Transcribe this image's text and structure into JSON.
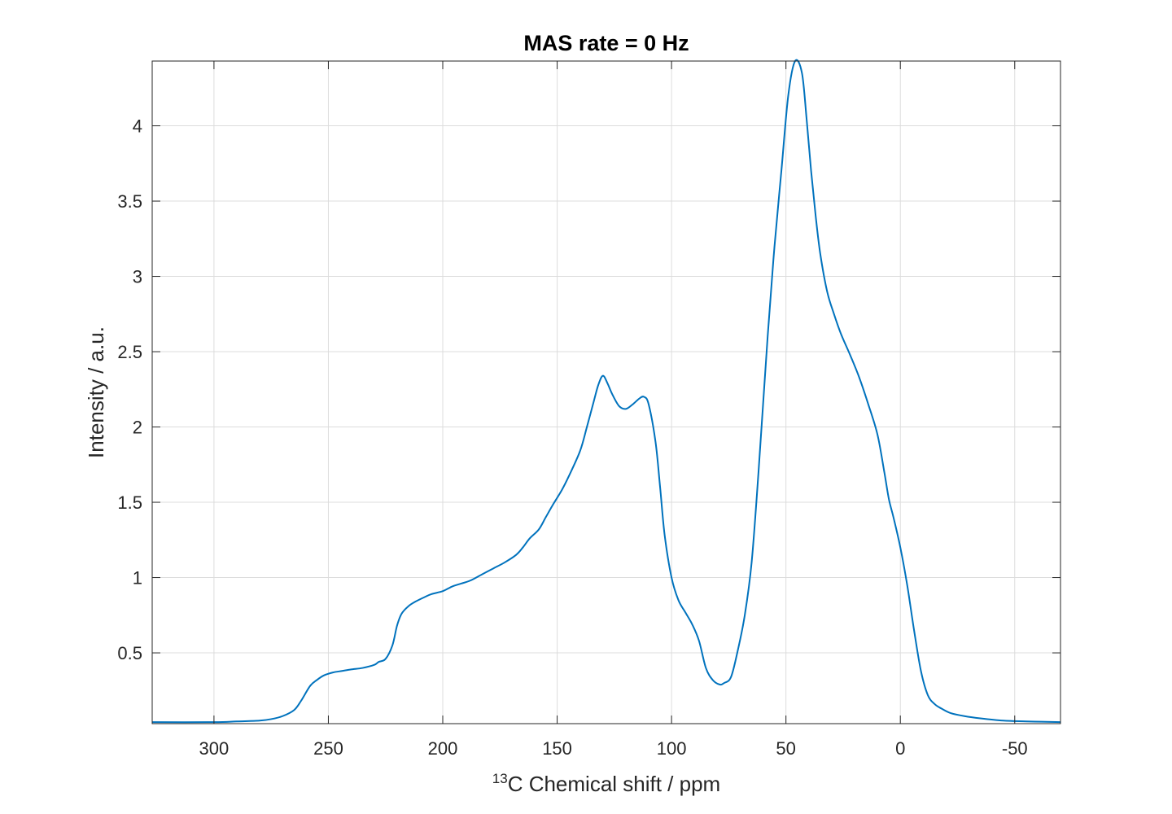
{
  "chart_data": {
    "type": "line",
    "title": "MAS rate = 0 Hz",
    "xlabel": {
      "sup": "13",
      "text": "C Chemical shift / ppm"
    },
    "ylabel": "Intensity / a.u.",
    "xlim": [
      327,
      -70
    ],
    "x_reversed": true,
    "ylim": [
      0.03,
      4.43
    ],
    "xticks": [
      300,
      250,
      200,
      150,
      100,
      50,
      0,
      -50
    ],
    "xtick_labels": [
      "300",
      "250",
      "200",
      "150",
      "100",
      "50",
      "0",
      "-50"
    ],
    "yticks": [
      0.5,
      1,
      1.5,
      2,
      2.5,
      3,
      3.5,
      4
    ],
    "ytick_labels": [
      "0.5",
      "1",
      "1.5",
      "2",
      "2.5",
      "3",
      "3.5",
      "4"
    ],
    "grid": true,
    "line_color": "#0072BD",
    "series": [
      {
        "x": [
          327,
          300,
          290,
          280,
          275,
          270,
          265,
          262,
          258,
          255,
          252,
          248,
          244,
          240,
          235,
          230,
          228,
          225,
          222,
          220,
          218,
          215,
          212,
          208,
          205,
          200,
          196,
          192,
          188,
          183,
          178,
          173,
          168,
          165,
          162,
          158,
          155,
          152,
          148,
          145,
          140,
          137,
          134,
          132,
          130,
          128,
          126,
          123,
          120,
          117,
          114,
          112,
          110,
          107,
          105,
          103,
          100,
          97,
          94,
          91,
          88,
          85,
          82,
          79,
          77,
          74,
          71,
          68,
          65,
          62,
          58,
          55,
          52,
          49,
          46,
          43,
          41,
          39,
          37,
          35,
          32,
          29,
          26,
          22,
          18,
          14,
          10,
          7,
          5,
          3,
          0,
          -3,
          -6,
          -9,
          -12,
          -15,
          -18,
          -22,
          -28,
          -35,
          -45,
          -55,
          -70
        ],
        "y": [
          0.04,
          0.04,
          0.045,
          0.05,
          0.06,
          0.08,
          0.12,
          0.18,
          0.28,
          0.32,
          0.35,
          0.37,
          0.38,
          0.39,
          0.4,
          0.42,
          0.44,
          0.46,
          0.55,
          0.68,
          0.76,
          0.81,
          0.84,
          0.87,
          0.89,
          0.91,
          0.94,
          0.96,
          0.98,
          1.02,
          1.06,
          1.1,
          1.15,
          1.2,
          1.26,
          1.32,
          1.4,
          1.48,
          1.58,
          1.67,
          1.84,
          2.0,
          2.17,
          2.28,
          2.34,
          2.29,
          2.22,
          2.14,
          2.12,
          2.15,
          2.19,
          2.2,
          2.15,
          1.9,
          1.6,
          1.28,
          1.0,
          0.85,
          0.77,
          0.69,
          0.58,
          0.4,
          0.32,
          0.29,
          0.3,
          0.34,
          0.52,
          0.75,
          1.1,
          1.7,
          2.6,
          3.2,
          3.7,
          4.2,
          4.43,
          4.35,
          4.05,
          3.7,
          3.4,
          3.15,
          2.9,
          2.75,
          2.62,
          2.48,
          2.33,
          2.15,
          1.95,
          1.7,
          1.52,
          1.4,
          1.2,
          0.95,
          0.65,
          0.38,
          0.22,
          0.16,
          0.13,
          0.1,
          0.08,
          0.065,
          0.05,
          0.045,
          0.04
        ]
      }
    ]
  }
}
